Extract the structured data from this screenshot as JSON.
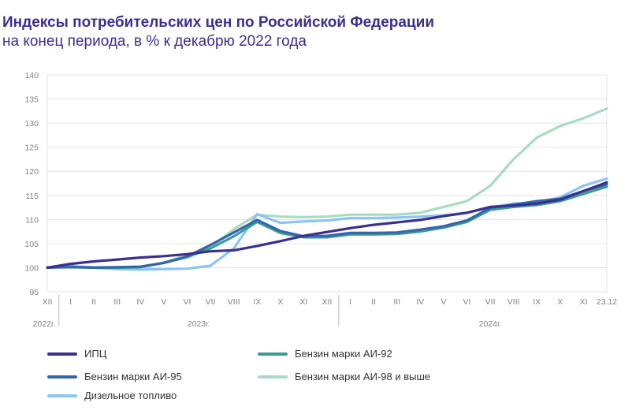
{
  "header": {
    "title": "Индексы потребительских цен по Российской Федерации",
    "subtitle": "на конец периода, в % к декабрю 2022 года"
  },
  "chart_data": {
    "type": "line",
    "title": "Индексы потребительских цен по Российской Федерации",
    "subtitle": "на конец периода, в % к декабрю 2022 года",
    "ylim": [
      95,
      140
    ],
    "yticks": [
      95,
      100,
      105,
      110,
      115,
      120,
      125,
      130,
      135,
      140
    ],
    "grid": "horizontal",
    "categories": [
      "XII",
      "I",
      "II",
      "III",
      "IV",
      "V",
      "VI",
      "VII",
      "VIII",
      "IX",
      "X",
      "XI",
      "XII",
      "I",
      "II",
      "III",
      "IV",
      "V",
      "VI",
      "VII",
      "VIII",
      "IX",
      "X",
      "XI",
      "23.12"
    ],
    "year_labels": [
      "2022г.",
      "2023г.",
      "2024г."
    ],
    "legend_position": "bottom",
    "series": [
      {
        "name": "ИПЦ",
        "color": "#3b2f8f",
        "values": [
          100,
          100.8,
          101.3,
          101.7,
          102.1,
          102.4,
          102.8,
          103.4,
          103.6,
          104.5,
          105.5,
          106.6,
          107.4,
          108.2,
          108.9,
          109.4,
          109.9,
          110.7,
          111.4,
          112.6,
          112.9,
          113.3,
          114.1,
          115.9,
          117.7
        ]
      },
      {
        "name": "Бензин марки АИ-92",
        "color": "#3a9e8f",
        "values": [
          100,
          100.2,
          100.0,
          100.0,
          100.1,
          101.0,
          102.2,
          104.0,
          106.5,
          109.5,
          107.2,
          106.3,
          106.3,
          106.9,
          106.9,
          107.0,
          107.5,
          108.3,
          109.5,
          112.0,
          112.6,
          113.0,
          113.8,
          115.3,
          116.8
        ]
      },
      {
        "name": "Бензин марки АИ-95",
        "color": "#3565ad",
        "values": [
          100,
          100.1,
          100.0,
          100.1,
          100.2,
          101.0,
          102.3,
          104.7,
          107.3,
          109.9,
          107.6,
          106.5,
          106.6,
          107.2,
          107.2,
          107.3,
          107.9,
          108.6,
          109.8,
          112.4,
          113.1,
          113.8,
          114.3,
          115.9,
          117.3
        ]
      },
      {
        "name": "Бензин марки АИ-98 и выше",
        "color": "#a8dcc1",
        "values": [
          100,
          100.3,
          100.1,
          100.1,
          100.2,
          101.0,
          102.7,
          104.2,
          108.0,
          111.0,
          110.6,
          110.5,
          110.6,
          111.0,
          111.0,
          111.0,
          111.4,
          112.6,
          113.8,
          117.0,
          122.5,
          127.0,
          129.4,
          131.0,
          133.0
        ]
      },
      {
        "name": "Дизельное топливо",
        "color": "#8ec3f6",
        "values": [
          100,
          100.3,
          100.0,
          99.7,
          99.6,
          99.7,
          99.8,
          100.4,
          104.0,
          111.1,
          109.3,
          109.6,
          109.8,
          110.3,
          110.3,
          110.4,
          110.6,
          110.9,
          111.4,
          112.5,
          113.3,
          113.5,
          114.6,
          117.0,
          118.5
        ]
      }
    ]
  }
}
